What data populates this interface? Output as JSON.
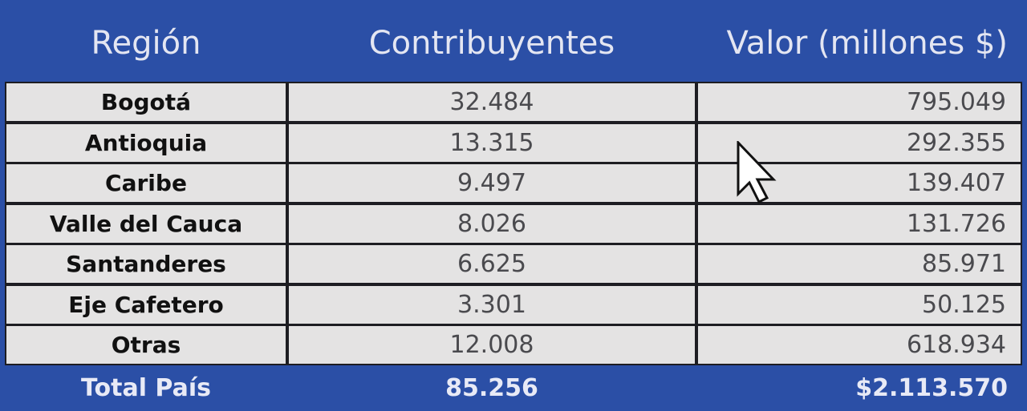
{
  "table": {
    "header": [
      "Región",
      "Contribuyentes",
      "Valor (millones $)"
    ],
    "rows": [
      [
        "Bogotá",
        "32.484",
        "795.049"
      ],
      [
        "Antioquia",
        "13.315",
        "292.355"
      ],
      [
        "Caribe",
        "9.497",
        "139.407"
      ],
      [
        "Valle del Cauca",
        "8.026",
        "131.726"
      ],
      [
        "Santanderes",
        "6.625",
        "85.971"
      ],
      [
        "Eje Cafetero",
        "3.301",
        "50.125"
      ],
      [
        "Otras",
        "12.008",
        "618.934"
      ]
    ],
    "total": [
      "Total País",
      "85.256",
      "$2.113.570"
    ]
  }
}
